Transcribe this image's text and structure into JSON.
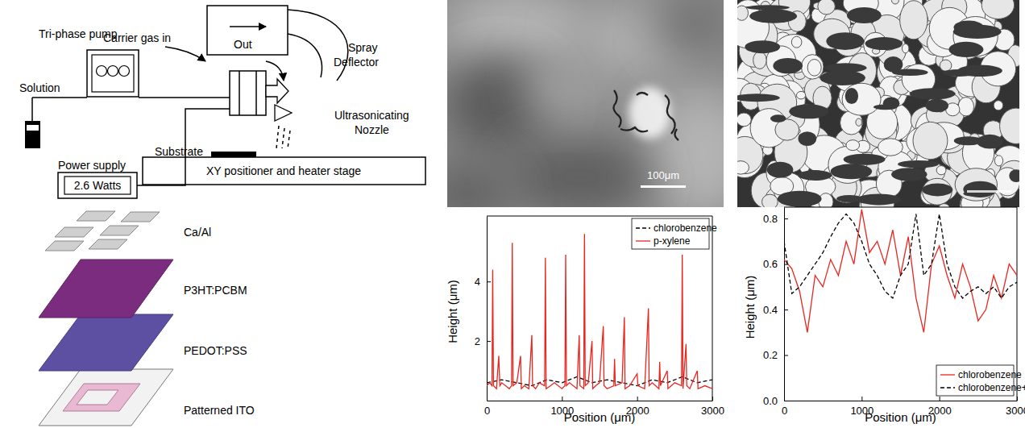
{
  "schematic": {
    "carrier_gas": "Carrier gas in",
    "outlet": "Out",
    "deflector": [
      "Spray",
      "Deflector"
    ],
    "pump": "Tri-phase pump",
    "solution": "Solution",
    "nozzle": [
      "Ultrasonicating",
      "Nozzle"
    ],
    "power_supply": "Power supply",
    "power": "2.6 Watts",
    "substrate": "Substrate",
    "stage": "XY positioner and heater stage"
  },
  "device_stack": {
    "layers": [
      "Ca/Al",
      "P3HT:PCBM",
      "PEDOT:PSS",
      "Patterned ITO"
    ]
  },
  "micrographs": [
    {
      "scale_bar": "100μm"
    }
  ],
  "chart_data": [
    {
      "type": "line",
      "x_label": "Position (μm)",
      "y_label": "Height (μm)",
      "xlim": [
        0,
        3000
      ],
      "xticks": [
        0,
        1000,
        2000,
        3000
      ],
      "ylim": [
        0,
        6.2
      ],
      "yticks": [
        2,
        4
      ],
      "legend": "top-right",
      "series": [
        {
          "name": "chlorobenzene",
          "color": "#000000",
          "line_style": "dashed",
          "x": [
            0,
            200,
            400,
            600,
            800,
            1000,
            1200,
            1400,
            1600,
            1800,
            2000,
            2200,
            2400,
            2600,
            2800,
            3000
          ],
          "values": [
            0.6,
            0.7,
            0.6,
            0.5,
            0.7,
            0.6,
            0.8,
            0.6,
            0.7,
            0.6,
            0.5,
            0.7,
            0.6,
            0.8,
            0.6,
            0.7
          ]
        },
        {
          "name": "p-xylene",
          "color": "#e8251f",
          "line_style": "solid",
          "x": [
            0,
            40,
            70,
            80,
            90,
            130,
            160,
            175,
            200,
            300,
            330,
            340,
            350,
            400,
            450,
            460,
            500,
            560,
            600,
            610,
            650,
            700,
            770,
            780,
            790,
            850,
            900,
            1000,
            1040,
            1050,
            1060,
            1100,
            1200,
            1230,
            1240,
            1290,
            1300,
            1310,
            1350,
            1400,
            1410,
            1450,
            1500,
            1550,
            1560,
            1600,
            1690,
            1700,
            1710,
            1800,
            1830,
            1840,
            1900,
            2000,
            2010,
            2100,
            2150,
            2160,
            2200,
            2290,
            2300,
            2310,
            2400,
            2410,
            2500,
            2590,
            2600,
            2610,
            2650,
            2660,
            2700,
            2800,
            2810,
            2900,
            3000
          ],
          "values": [
            0.5,
            0.6,
            0.5,
            4.4,
            0.5,
            0.4,
            1.5,
            0.5,
            0.6,
            0.4,
            0.5,
            5.3,
            0.5,
            0.6,
            1.5,
            0.4,
            0.5,
            0.4,
            2.2,
            0.5,
            0.4,
            0.6,
            0.5,
            4.8,
            0.4,
            0.5,
            0.6,
            0.4,
            0.5,
            4.9,
            0.5,
            0.6,
            0.4,
            2.2,
            0.5,
            0.4,
            5.6,
            0.5,
            0.6,
            2.0,
            0.4,
            0.5,
            0.6,
            2.5,
            0.5,
            0.4,
            0.5,
            1.4,
            0.5,
            0.6,
            2.8,
            0.4,
            0.5,
            0.9,
            0.5,
            0.4,
            3.1,
            0.5,
            0.6,
            0.4,
            1.3,
            0.5,
            1.0,
            0.4,
            0.6,
            0.5,
            4.9,
            0.4,
            1.9,
            0.5,
            0.4,
            1.0,
            0.4,
            0.5,
            0.4
          ]
        }
      ]
    },
    {
      "type": "line",
      "x_label": "Position (μm)",
      "y_label": "Height (μm)",
      "xlim": [
        0,
        3000
      ],
      "xticks": [
        0,
        1000,
        2000,
        3000
      ],
      "ylim": [
        0,
        0.85
      ],
      "yticks": [
        {
          "value": 0,
          "label": "0.0"
        },
        0.2,
        0.4,
        0.6,
        0.8
      ],
      "legend": "bottom-right",
      "x": [
        0,
        100,
        200,
        300,
        400,
        500,
        600,
        700,
        800,
        900,
        1000,
        1100,
        1200,
        1300,
        1400,
        1500,
        1600,
        1700,
        1800,
        1900,
        2000,
        2100,
        2200,
        2300,
        2400,
        2500,
        2600,
        2700,
        2800,
        2900,
        3000
      ],
      "series": [
        {
          "name": "chlorobenzene",
          "color": "#e8251f",
          "line_style": "solid",
          "values": [
            0.62,
            0.58,
            0.48,
            0.3,
            0.55,
            0.5,
            0.62,
            0.55,
            0.7,
            0.6,
            0.84,
            0.65,
            0.7,
            0.6,
            0.75,
            0.55,
            0.72,
            0.45,
            0.3,
            0.6,
            0.68,
            0.55,
            0.45,
            0.6,
            0.5,
            0.35,
            0.4,
            0.55,
            0.45,
            0.6,
            0.55
          ]
        },
        {
          "name": "chlorobenzene+",
          "color": "#000000",
          "line_style": "dashed",
          "values": [
            0.7,
            0.47,
            0.5,
            0.55,
            0.6,
            0.65,
            0.72,
            0.78,
            0.82,
            0.78,
            0.7,
            0.6,
            0.55,
            0.48,
            0.45,
            0.55,
            0.6,
            0.82,
            0.55,
            0.6,
            0.82,
            0.6,
            0.5,
            0.45,
            0.48,
            0.5,
            0.47,
            0.5,
            0.45,
            0.5,
            0.52
          ]
        }
      ]
    }
  ]
}
